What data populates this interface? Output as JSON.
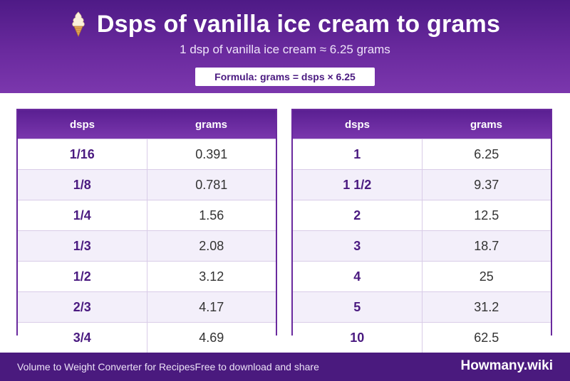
{
  "header": {
    "title": "Dsps of vanilla ice cream to grams",
    "title_icon": "soft-serve-ice-cream-icon",
    "subtitle": "1 dsp of vanilla ice cream ≈ 6.25 grams",
    "formula": "Formula: grams = dsps × 6.25"
  },
  "tables": [
    {
      "headers": [
        "dsps",
        "grams"
      ],
      "rows": [
        [
          "1/16",
          "0.391"
        ],
        [
          "1/8",
          "0.781"
        ],
        [
          "1/4",
          "1.56"
        ],
        [
          "1/3",
          "2.08"
        ],
        [
          "1/2",
          "3.12"
        ],
        [
          "2/3",
          "4.17"
        ],
        [
          "3/4",
          "4.69"
        ]
      ]
    },
    {
      "headers": [
        "dsps",
        "grams"
      ],
      "rows": [
        [
          "1",
          "6.25"
        ],
        [
          "1 1/2",
          "9.37"
        ],
        [
          "2",
          "12.5"
        ],
        [
          "3",
          "18.7"
        ],
        [
          "4",
          "25"
        ],
        [
          "5",
          "31.2"
        ],
        [
          "10",
          "62.5"
        ]
      ]
    }
  ],
  "footer": {
    "left_text": "Volume to Weight Converter for RecipesFree to download and share",
    "brand": "Howmany.wiki"
  },
  "colors": {
    "header_purple": "#5a1f92",
    "footer_purple": "#4a1a7e",
    "accent_text": "#4a1a80",
    "row_alt": "#f3effa"
  }
}
